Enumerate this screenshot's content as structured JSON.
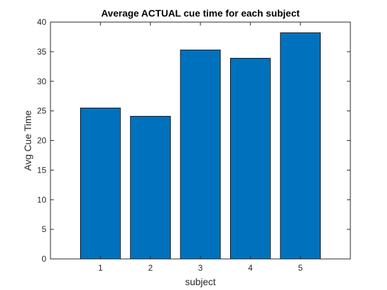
{
  "chart_data": {
    "type": "bar",
    "title": "Average ACTUAL cue time for each subject",
    "xlabel": "subject",
    "ylabel": "Avg Cue Time",
    "categories": [
      "1",
      "2",
      "3",
      "4",
      "5"
    ],
    "values": [
      25.5,
      24.1,
      35.3,
      33.9,
      38.2
    ],
    "xlim": [
      0,
      6
    ],
    "ylim": [
      0,
      40
    ],
    "yticks": [
      0,
      5,
      10,
      15,
      20,
      25,
      30,
      35,
      40
    ],
    "grid": false,
    "legend": "none",
    "colors": {
      "bar_fill": "#0072BD",
      "bar_edge": "#000000",
      "axis": "#262626",
      "background": "#ffffff"
    }
  }
}
